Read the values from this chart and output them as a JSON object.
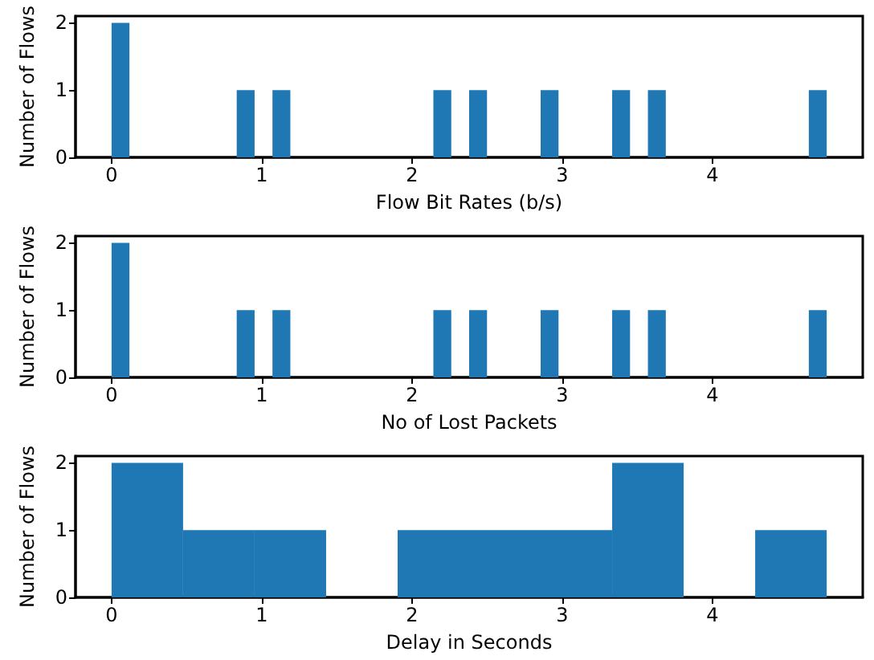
{
  "chart_data": [
    {
      "type": "histogram",
      "xlabel": "Flow Bit Rates (b/s)",
      "ylabel": "Number of Flows",
      "color": "#1f77b4",
      "bins": [
        0,
        0.119,
        0.238,
        0.357,
        0.476,
        0.595,
        0.714,
        0.833,
        0.952,
        1.071,
        1.19,
        1.309,
        1.428,
        1.547,
        1.666,
        1.785,
        1.904,
        2.023,
        2.142,
        2.261,
        2.38,
        2.499,
        2.618,
        2.737,
        2.856,
        2.975,
        3.094,
        3.213,
        3.332,
        3.451,
        3.57,
        3.689,
        3.808,
        3.927,
        4.046,
        4.165,
        4.284,
        4.403,
        4.522,
        4.641,
        4.76
      ],
      "values": [
        2,
        0,
        0,
        0,
        0,
        0,
        0,
        1,
        0,
        1,
        0,
        0,
        0,
        0,
        0,
        0,
        0,
        0,
        1,
        0,
        1,
        0,
        0,
        0,
        1,
        0,
        0,
        0,
        1,
        0,
        1,
        0,
        0,
        0,
        0,
        0,
        0,
        0,
        0,
        1
      ],
      "xlim": [
        -0.24,
        5.0
      ],
      "xticks": [
        0,
        1,
        2,
        3,
        4
      ],
      "ylim": [
        0,
        2.1
      ],
      "yticks": [
        0,
        1,
        2
      ]
    },
    {
      "type": "histogram",
      "xlabel": "No of Lost Packets",
      "ylabel": "Number of Flows",
      "color": "#1f77b4",
      "bins": [
        0,
        0.119,
        0.238,
        0.357,
        0.476,
        0.595,
        0.714,
        0.833,
        0.952,
        1.071,
        1.19,
        1.309,
        1.428,
        1.547,
        1.666,
        1.785,
        1.904,
        2.023,
        2.142,
        2.261,
        2.38,
        2.499,
        2.618,
        2.737,
        2.856,
        2.975,
        3.094,
        3.213,
        3.332,
        3.451,
        3.57,
        3.689,
        3.808,
        3.927,
        4.046,
        4.165,
        4.284,
        4.403,
        4.522,
        4.641,
        4.76
      ],
      "values": [
        2,
        0,
        0,
        0,
        0,
        0,
        0,
        1,
        0,
        1,
        0,
        0,
        0,
        0,
        0,
        0,
        0,
        0,
        1,
        0,
        1,
        0,
        0,
        0,
        1,
        0,
        0,
        0,
        1,
        0,
        1,
        0,
        0,
        0,
        0,
        0,
        0,
        0,
        0,
        1
      ],
      "xlim": [
        -0.24,
        5.0
      ],
      "xticks": [
        0,
        1,
        2,
        3,
        4
      ],
      "ylim": [
        0,
        2.1
      ],
      "yticks": [
        0,
        1,
        2
      ]
    },
    {
      "type": "histogram",
      "xlabel": "Delay in Seconds",
      "ylabel": "Number of Flows",
      "color": "#1f77b4",
      "bins": [
        0,
        0.476,
        0.952,
        1.428,
        1.904,
        2.38,
        2.856,
        3.332,
        3.808,
        4.284,
        4.76
      ],
      "values": [
        2,
        1,
        1,
        0,
        1,
        1,
        1,
        2,
        0,
        1
      ],
      "xlim": [
        -0.24,
        5.0
      ],
      "xticks": [
        0,
        1,
        2,
        3,
        4
      ],
      "ylim": [
        0,
        2.1
      ],
      "yticks": [
        0,
        1,
        2
      ]
    }
  ]
}
